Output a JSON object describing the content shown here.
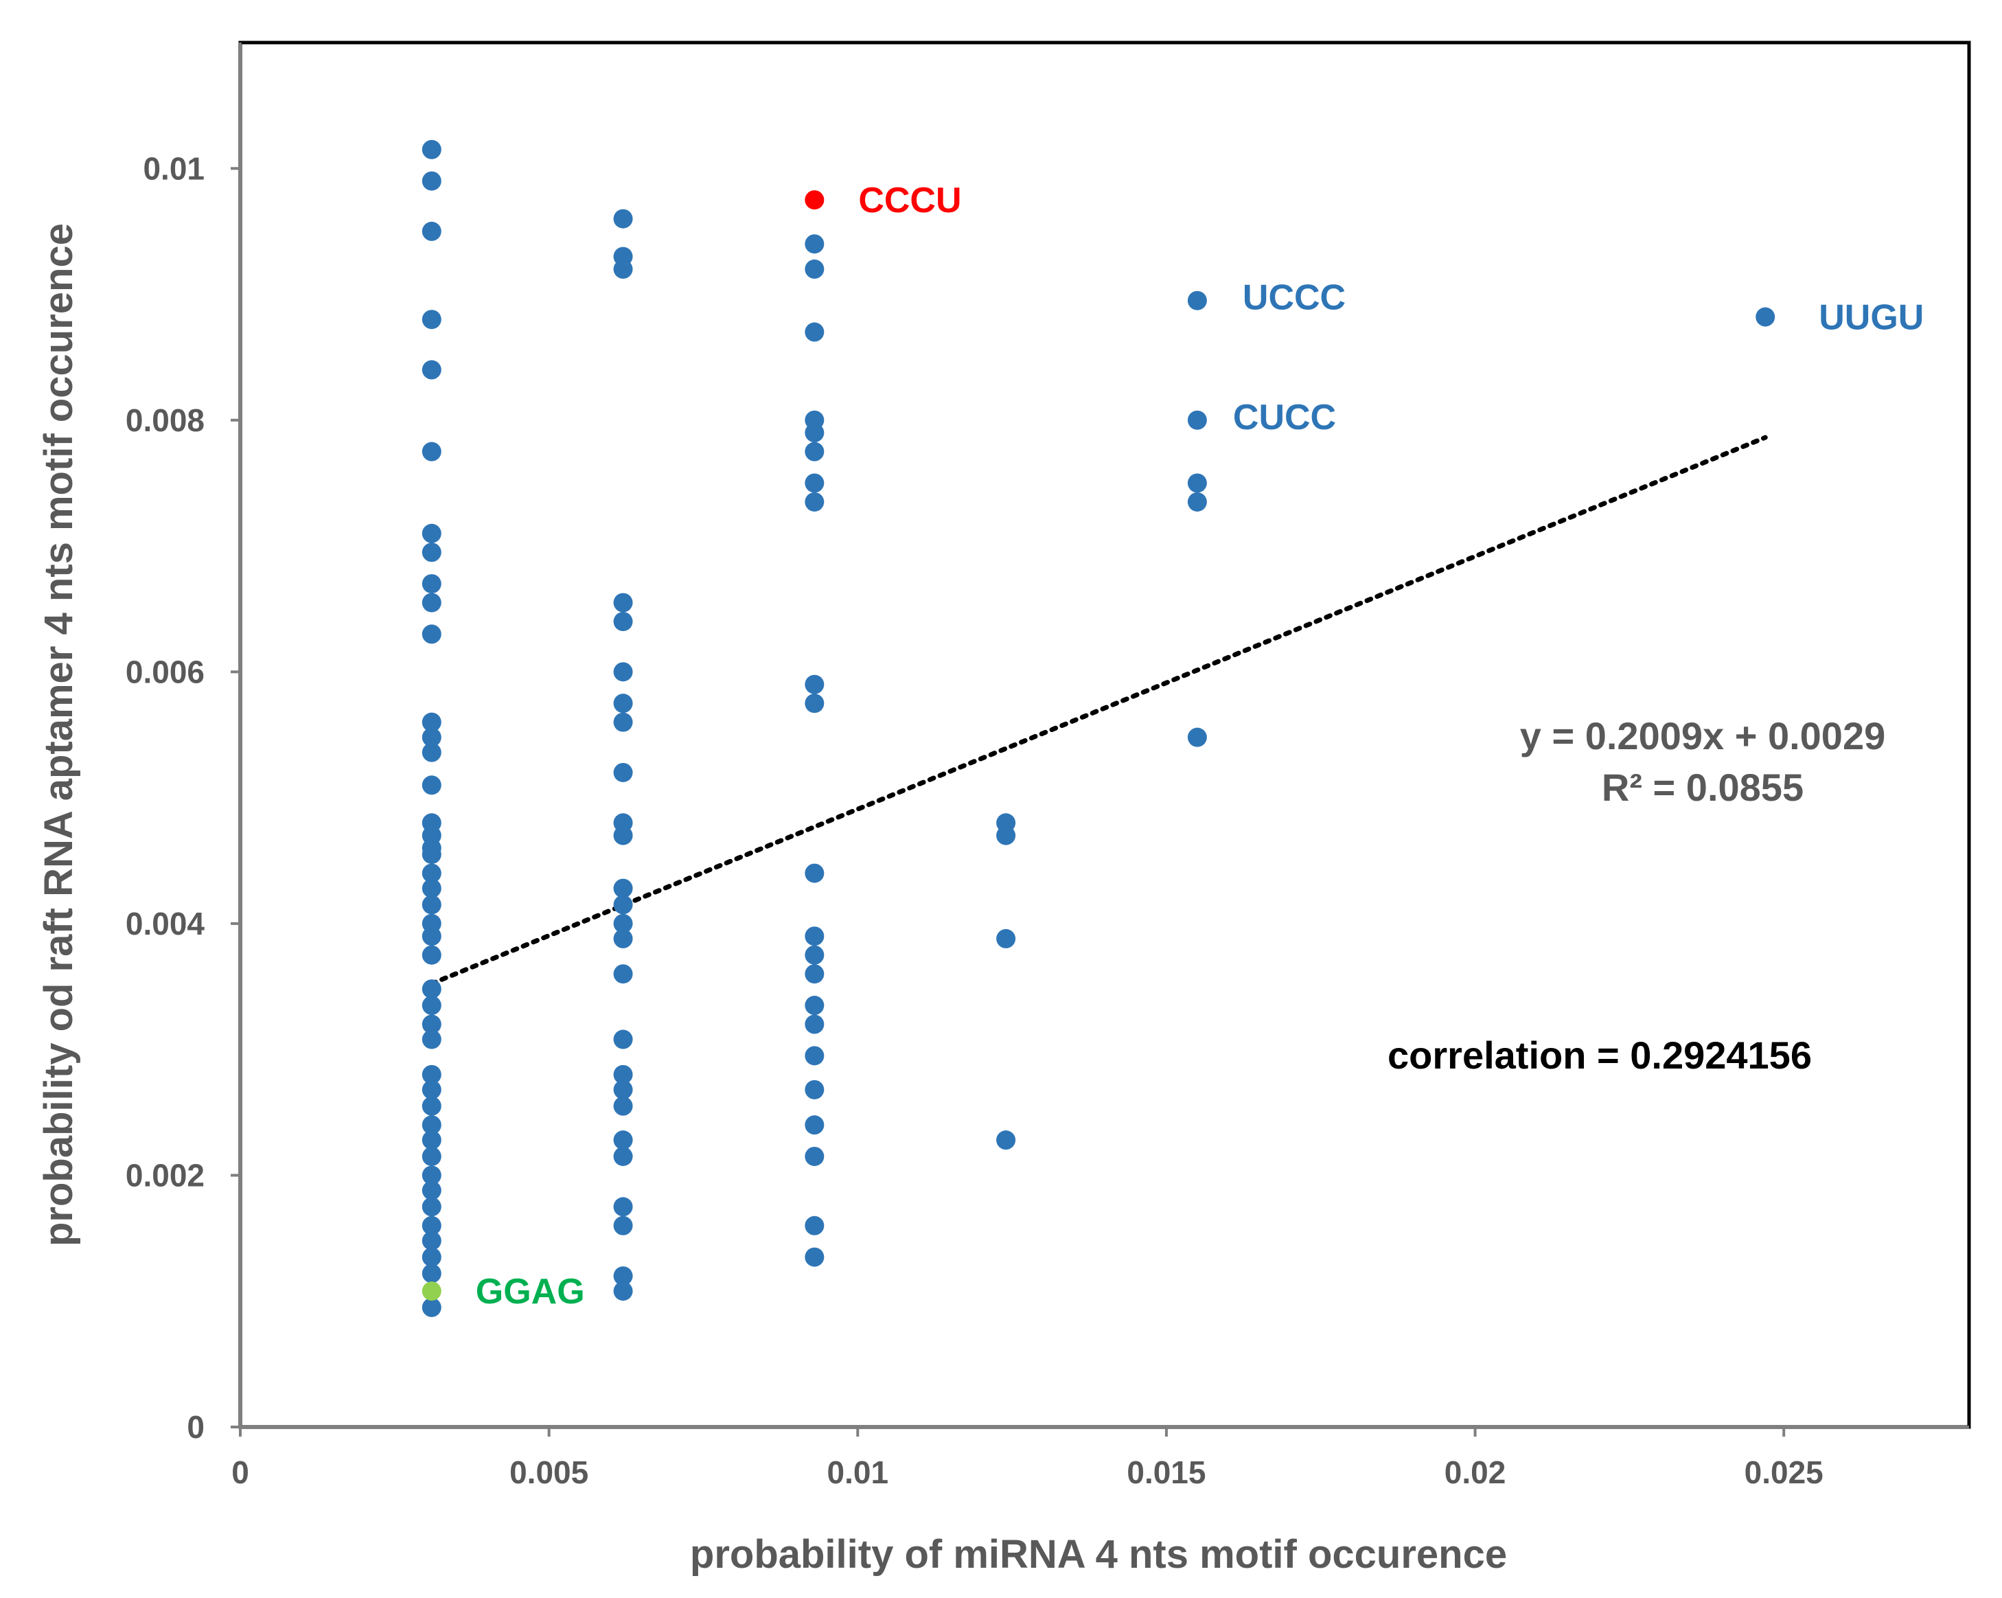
{
  "chart_data": {
    "type": "scatter",
    "xlabel": "probability of miRNA 4 nts motif occurence",
    "ylabel": "probability od raft RNA aptamer 4 nts motif occurence",
    "xlim": [
      0,
      0.028
    ],
    "ylim": [
      0,
      0.011
    ],
    "x_ticks": [
      {
        "value": 0,
        "label": "0"
      },
      {
        "value": 0.005,
        "label": "0.005"
      },
      {
        "value": 0.01,
        "label": "0.01"
      },
      {
        "value": 0.015,
        "label": "0.015"
      },
      {
        "value": 0.02,
        "label": "0.02"
      },
      {
        "value": 0.025,
        "label": "0.025"
      }
    ],
    "y_ticks": [
      {
        "value": 0,
        "label": "0"
      },
      {
        "value": 0.002,
        "label": "0.002"
      },
      {
        "value": 0.004,
        "label": "0.004"
      },
      {
        "value": 0.006,
        "label": "0.006"
      },
      {
        "value": 0.008,
        "label": "0.008"
      },
      {
        "value": 0.01,
        "label": "0.01"
      }
    ],
    "grid": false,
    "colors": {
      "points": "#2E75B6",
      "highlight_red": "#FF0000",
      "highlight_green": "#00B050",
      "green_marker": "#92D050",
      "trendline": "#000000",
      "axis_text": "#595959"
    },
    "series": [
      {
        "color": "#2E75B6",
        "points": [
          [
            0.0031,
            0.01015
          ],
          [
            0.0031,
            0.0099
          ],
          [
            0.0031,
            0.0095
          ],
          [
            0.0031,
            0.0088
          ],
          [
            0.0031,
            0.0084
          ],
          [
            0.0031,
            0.00775
          ],
          [
            0.0031,
            0.0071
          ],
          [
            0.0031,
            0.00695
          ],
          [
            0.0031,
            0.0067
          ],
          [
            0.0031,
            0.00655
          ],
          [
            0.0031,
            0.0063
          ],
          [
            0.0031,
            0.0056
          ],
          [
            0.0031,
            0.00548
          ],
          [
            0.0031,
            0.00536
          ],
          [
            0.0031,
            0.0051
          ],
          [
            0.0031,
            0.0048
          ],
          [
            0.0031,
            0.0047
          ],
          [
            0.0031,
            0.0046
          ],
          [
            0.0031,
            0.00455
          ],
          [
            0.0031,
            0.0044
          ],
          [
            0.0031,
            0.00428
          ],
          [
            0.0031,
            0.00415
          ],
          [
            0.0031,
            0.004
          ],
          [
            0.0031,
            0.0039
          ],
          [
            0.0031,
            0.00375
          ],
          [
            0.0031,
            0.00348
          ],
          [
            0.0031,
            0.00335
          ],
          [
            0.0031,
            0.0032
          ],
          [
            0.0031,
            0.00308
          ],
          [
            0.0031,
            0.0028
          ],
          [
            0.0031,
            0.00268
          ],
          [
            0.0031,
            0.00255
          ],
          [
            0.0031,
            0.0024
          ],
          [
            0.0031,
            0.00228
          ],
          [
            0.0031,
            0.00215
          ],
          [
            0.0031,
            0.002
          ],
          [
            0.0031,
            0.00188
          ],
          [
            0.0031,
            0.00175
          ],
          [
            0.0031,
            0.0016
          ],
          [
            0.0031,
            0.00148
          ],
          [
            0.0031,
            0.00135
          ],
          [
            0.0031,
            0.00122
          ],
          [
            0.0031,
            0.00095
          ],
          [
            0.0062,
            0.0096
          ],
          [
            0.0062,
            0.0093
          ],
          [
            0.0062,
            0.0092
          ],
          [
            0.0062,
            0.00655
          ],
          [
            0.0062,
            0.0064
          ],
          [
            0.0062,
            0.006
          ],
          [
            0.0062,
            0.00575
          ],
          [
            0.0062,
            0.0056
          ],
          [
            0.0062,
            0.0052
          ],
          [
            0.0062,
            0.0048
          ],
          [
            0.0062,
            0.0047
          ],
          [
            0.0062,
            0.00428
          ],
          [
            0.0062,
            0.00415
          ],
          [
            0.0062,
            0.004
          ],
          [
            0.0062,
            0.00388
          ],
          [
            0.0062,
            0.0036
          ],
          [
            0.0062,
            0.00308
          ],
          [
            0.0062,
            0.0028
          ],
          [
            0.0062,
            0.00268
          ],
          [
            0.0062,
            0.00255
          ],
          [
            0.0062,
            0.00228
          ],
          [
            0.0062,
            0.00215
          ],
          [
            0.0062,
            0.00175
          ],
          [
            0.0062,
            0.0016
          ],
          [
            0.0062,
            0.0012
          ],
          [
            0.0062,
            0.00108
          ],
          [
            0.0093,
            0.0094
          ],
          [
            0.0093,
            0.0092
          ],
          [
            0.0093,
            0.0087
          ],
          [
            0.0093,
            0.008
          ],
          [
            0.0093,
            0.0079
          ],
          [
            0.0093,
            0.00775
          ],
          [
            0.0093,
            0.0075
          ],
          [
            0.0093,
            0.00735
          ],
          [
            0.0093,
            0.0059
          ],
          [
            0.0093,
            0.00575
          ],
          [
            0.0093,
            0.0044
          ],
          [
            0.0093,
            0.0039
          ],
          [
            0.0093,
            0.00375
          ],
          [
            0.0093,
            0.0036
          ],
          [
            0.0093,
            0.00335
          ],
          [
            0.0093,
            0.0032
          ],
          [
            0.0093,
            0.00295
          ],
          [
            0.0093,
            0.00268
          ],
          [
            0.0093,
            0.0024
          ],
          [
            0.0093,
            0.00215
          ],
          [
            0.0093,
            0.0016
          ],
          [
            0.0093,
            0.00135
          ],
          [
            0.0124,
            0.0048
          ],
          [
            0.0124,
            0.0047
          ],
          [
            0.0124,
            0.00388
          ],
          [
            0.0124,
            0.00228
          ],
          [
            0.0155,
            0.00895
          ],
          [
            0.0155,
            0.008
          ],
          [
            0.0155,
            0.0075
          ],
          [
            0.0155,
            0.00735
          ],
          [
            0.0155,
            0.00548
          ],
          [
            0.0247,
            0.00882
          ]
        ]
      }
    ],
    "highlighted_points": [
      {
        "label": "CCCU",
        "x": 0.0093,
        "y": 0.00975,
        "color": "#FF0000",
        "label_color": "#FF0000"
      },
      {
        "label": "GGAG",
        "x": 0.0031,
        "y": 0.00108,
        "color": "#92D050",
        "label_color": "#00B050"
      }
    ],
    "point_labels": [
      {
        "label": "UCCC",
        "x": 0.0155,
        "y": 0.00895,
        "color": "#2E75B6"
      },
      {
        "label": "CUCC",
        "x": 0.0155,
        "y": 0.008,
        "color": "#2E75B6"
      },
      {
        "label": "UUGU",
        "x": 0.0247,
        "y": 0.00882,
        "color": "#2E75B6"
      }
    ],
    "trendline": {
      "slope": 0.2009,
      "intercept": 0.0029,
      "x_range": [
        0.0031,
        0.0247
      ],
      "style": "dotted",
      "equation": "y = 0.2009x + 0.0029",
      "r_squared": "R² = 0.0855"
    },
    "annotations": {
      "correlation": "correlation = 0.2924156"
    }
  }
}
